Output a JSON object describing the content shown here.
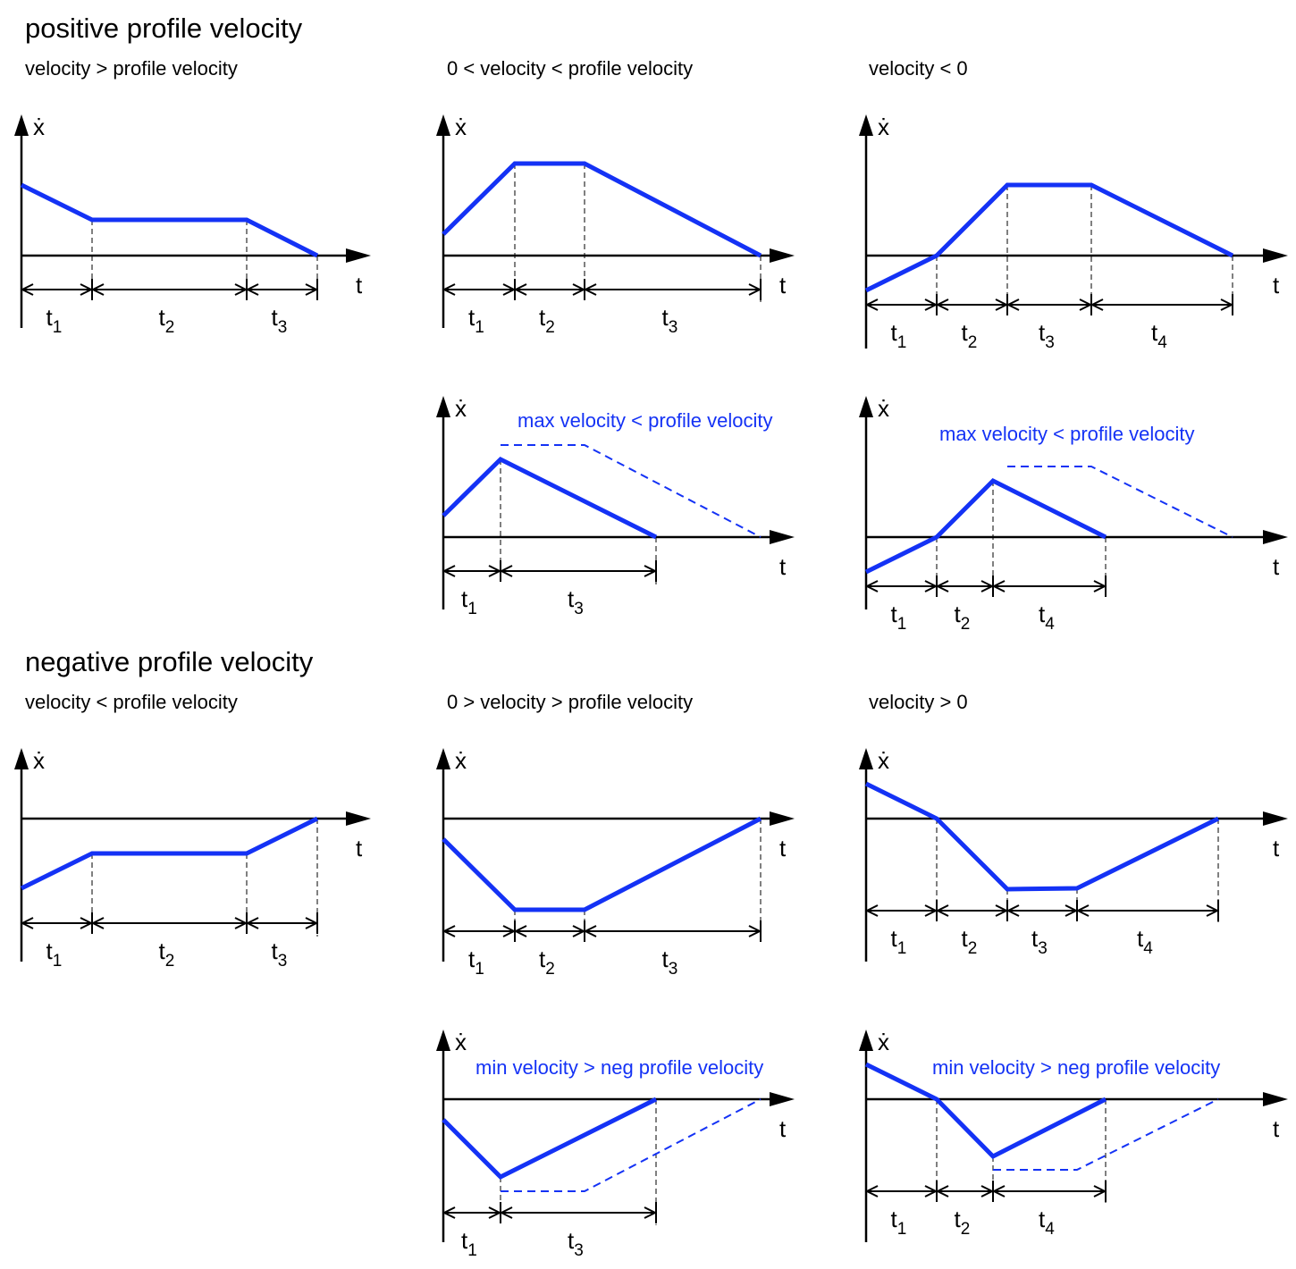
{
  "sections": [
    {
      "title": "positive profile velocity"
    },
    {
      "title": "negative profile velocity"
    }
  ],
  "axis_labels": {
    "y": "ẋ",
    "x": "t"
  },
  "colors": {
    "profile": "#1432f5",
    "axis": "#000000"
  },
  "cases": {
    "pos_1": {
      "label": "velocity > profile velocity",
      "annotation": "",
      "intervals": [
        "t1",
        "t2",
        "t3"
      ]
    },
    "pos_2": {
      "label": "0 < velocity < profile velocity",
      "annotation": "",
      "intervals": [
        "t1",
        "t2",
        "t3"
      ]
    },
    "pos_3": {
      "label": "velocity < 0",
      "annotation": "",
      "intervals": [
        "t1",
        "t2",
        "t3",
        "t4"
      ]
    },
    "pos_2b": {
      "label": "",
      "annotation": "max velocity < profile velocity",
      "intervals": [
        "t1",
        "t3"
      ]
    },
    "pos_3b": {
      "label": "",
      "annotation": "max velocity < profile velocity",
      "intervals": [
        "t1",
        "t2",
        "t4"
      ]
    },
    "neg_1": {
      "label": "velocity < profile velocity",
      "annotation": "",
      "intervals": [
        "t1",
        "t2",
        "t3"
      ]
    },
    "neg_2": {
      "label": "0 > velocity > profile velocity",
      "annotation": "",
      "intervals": [
        "t1",
        "t2",
        "t3"
      ]
    },
    "neg_3": {
      "label": "velocity > 0",
      "annotation": "",
      "intervals": [
        "t1",
        "t2",
        "t3",
        "t4"
      ]
    },
    "neg_2b": {
      "label": "",
      "annotation": "min velocity > neg profile velocity",
      "intervals": [
        "t1",
        "t3"
      ]
    },
    "neg_3b": {
      "label": "",
      "annotation": "min velocity > neg profile velocity",
      "intervals": [
        "t1",
        "t2",
        "t4"
      ]
    }
  }
}
